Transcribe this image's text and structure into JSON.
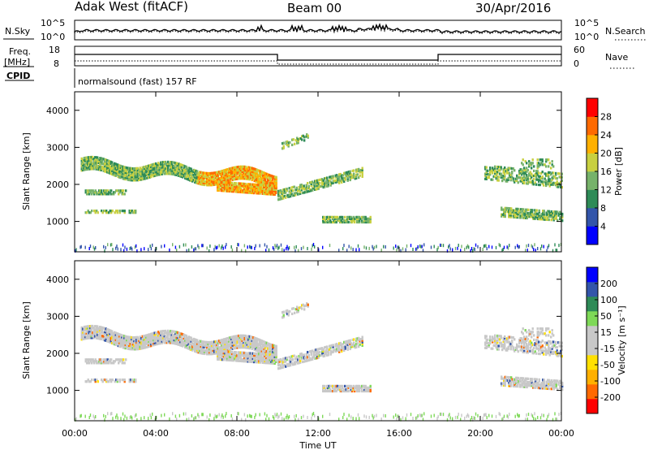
{
  "header": {
    "station": "Adak West (fitACF)",
    "beam": "Beam 00",
    "date": "30/Apr/2016"
  },
  "status_panels": {
    "nsky_label": "N.Sky",
    "nsky_ticks": [
      "10^5",
      "10^0"
    ],
    "nsearch_label": "N.Search",
    "nsearch_ticks": [
      "10^5",
      "10^0"
    ],
    "freq_label_line1": "Freq.",
    "freq_label_line2": "[MHz]",
    "freq_ticks": [
      "18",
      "8"
    ],
    "nave_label": "Nave",
    "nave_ticks": [
      "60",
      "0"
    ],
    "cpid_label": "CPID",
    "cpid_text": "normalsound (fast) 157 RF"
  },
  "colors": {
    "power_scale": [
      "#0000ff",
      "#3355aa",
      "#2e8b57",
      "#76b26a",
      "#c8d040",
      "#ffb000",
      "#ff6a00",
      "#ff0000"
    ],
    "velocity_scale": [
      "#ff0000",
      "#ff6a00",
      "#ffb000",
      "#ffe000",
      "#c8c8c8",
      "#c8c8c8",
      "#7ed957",
      "#2e8b57",
      "#3355aa",
      "#0000ff"
    ]
  },
  "chart_data": [
    {
      "type": "heatmap",
      "name": "power",
      "ylabel": "Slant Range [km]",
      "xlabel": "Time UT",
      "ylim": [
        180,
        4500
      ],
      "yticks": [
        "1000",
        "2000",
        "3000",
        "4000"
      ],
      "colorbar": {
        "label": "Power [dB]",
        "range": [
          0,
          32
        ],
        "ticks": [
          "4",
          "8",
          "12",
          "16",
          "20",
          "24",
          "28"
        ]
      }
    },
    {
      "type": "heatmap",
      "name": "velocity",
      "ylabel": "Slant Range [km]",
      "xlabel": "Time UT",
      "ylim": [
        180,
        4500
      ],
      "yticks": [
        "1000",
        "2000",
        "3000",
        "4000"
      ],
      "xticks": [
        "00:00",
        "04:00",
        "08:00",
        "12:00",
        "16:00",
        "20:00",
        "00:00"
      ],
      "colorbar": {
        "label": "Velocity [m s⁻¹]",
        "ticks": [
          "200",
          "100",
          "50",
          "15",
          "-15",
          "-50",
          "-100",
          "-200"
        ]
      }
    }
  ],
  "footer": {
    "time_label": "Time UT"
  }
}
